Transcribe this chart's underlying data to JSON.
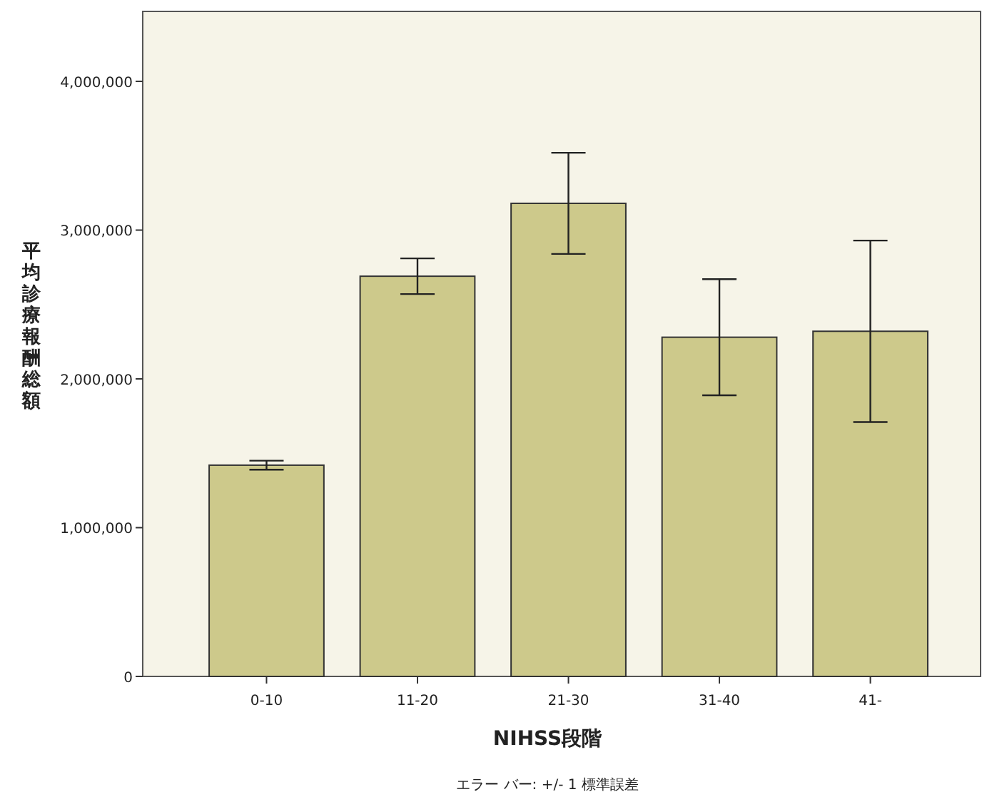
{
  "chart_data": {
    "type": "bar",
    "categories": [
      "0-10",
      "11-20",
      "21-30",
      "31-40",
      "41-"
    ],
    "values": [
      1420000,
      2690000,
      3180000,
      2280000,
      2320000
    ],
    "errors": [
      30000,
      120000,
      340000,
      390000,
      610000
    ],
    "color": "#cdc98b",
    "xlabel": "NIHSS段階",
    "ylabel": "平均診療報酬総額",
    "ylim": [
      0,
      4470000
    ],
    "yticks": [
      0,
      {
        "value": 1000000,
        "label": "1,000,000"
      },
      {
        "value": 2000000,
        "label": "2,000,000"
      },
      {
        "value": 3000000,
        "label": "3,000,000"
      },
      {
        "value": 4000000,
        "label": "4,000,000"
      }
    ],
    "annotations": [
      "エラー バー: +/- 1 標準誤差"
    ],
    "grid": false
  }
}
